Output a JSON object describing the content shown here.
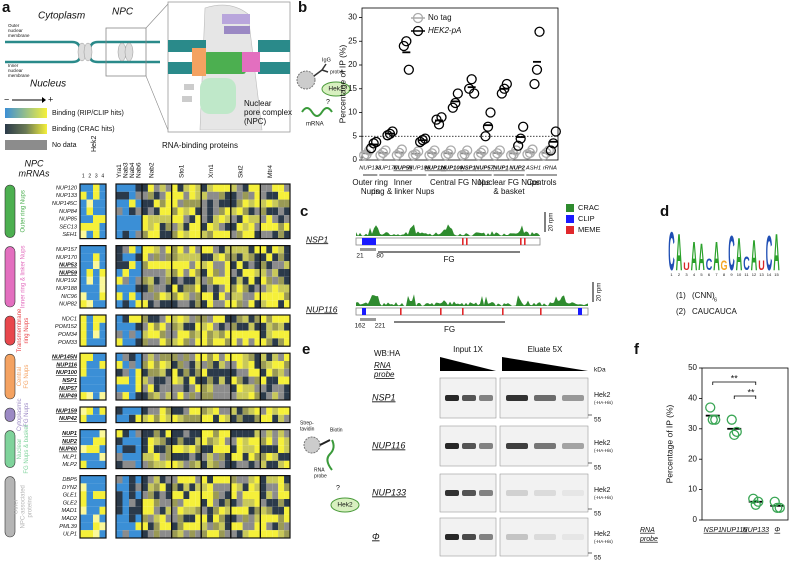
{
  "panel_labels": [
    "a",
    "b",
    "c",
    "d",
    "e",
    "f"
  ],
  "panel_a": {
    "cytoplasm": "Cytoplasm",
    "npc": "NPC",
    "nucleus": "Nucleus",
    "outer_membrane": [
      "Outer",
      "nuclear",
      "membrane"
    ],
    "inner_membrane": [
      "Inner",
      "nuclear",
      "membrane"
    ],
    "npc_label": [
      "Nuclear",
      "pore complex",
      "(NPC)"
    ],
    "legend": {
      "minus": "−",
      "plus": "+",
      "items": [
        "Binding (RIP/CLIP hits)",
        "Binding (CRAC hits)",
        "No data"
      ]
    },
    "heatmap": {
      "row_title": [
        "NPC",
        "mRNAs"
      ],
      "hek2": "Hek2",
      "replicates": [
        "1",
        "2",
        "3",
        "4"
      ],
      "rbp_title": "RNA-binding proteins",
      "proteins": [
        "Yra1",
        "Nab3",
        "Nab4",
        "Nab6",
        "Nab2",
        "Sto1",
        "Xrn1",
        "Ski2",
        "Mtr4"
      ],
      "groups": [
        {
          "label": [
            "Outer ring Nups"
          ],
          "color": "#4caf50",
          "genes": [
            "NUP120",
            "NUP133",
            "NUP145C",
            "NUP84",
            "NUP85",
            "SEC13",
            "SEH1"
          ]
        },
        {
          "label": [
            "Inner ring & linker Nups"
          ],
          "color": "#e36fbf",
          "genes": [
            "NUP157",
            "NUP170",
            {
              "name": "NUP53",
              "bold": true
            },
            {
              "name": "NUP59",
              "bold": true
            },
            "NUP192",
            "NUP188",
            "NIC96",
            "NUP82"
          ]
        },
        {
          "label": [
            "Transmembrane",
            "ring Nups"
          ],
          "color": "#e8474c",
          "genes": [
            "NDC1",
            "POM152",
            "POM34",
            "POM33"
          ]
        },
        {
          "label": [
            "Central",
            "FG Nups"
          ],
          "color": "#f4a261",
          "genes": [
            {
              "name": "NUP145N",
              "bold": true
            },
            {
              "name": "NUP116",
              "bold": true
            },
            {
              "name": "NUP100",
              "bold": true
            },
            {
              "name": "NSP1",
              "bold": true
            },
            {
              "name": "NUP57",
              "bold": true
            },
            {
              "name": "NUP49",
              "bold": true
            }
          ]
        },
        {
          "label": [
            "Cytoplasmic",
            "FG Nups"
          ],
          "color": "#9b89c4",
          "genes": [
            {
              "name": "NUP159",
              "bold": true
            },
            {
              "name": "NUP42",
              "bold": true
            }
          ]
        },
        {
          "label": [
            "Nuclear",
            "FG Nups & basket"
          ],
          "color": "#7fd39b",
          "genes": [
            {
              "name": "NUP1",
              "bold": true
            },
            {
              "name": "NUP2",
              "bold": true
            },
            {
              "name": "NUP60",
              "bold": true
            },
            "MLP1",
            "MLP2"
          ]
        },
        {
          "label": [
            "Other",
            "NPC-associated",
            "proteins"
          ],
          "color": "#b5b5b5",
          "genes": [
            "DBP5",
            "DYN2",
            "GLE1",
            "GLE2",
            "MAD1",
            "MAD2",
            "PML39",
            "ULP1"
          ]
        }
      ]
    }
  },
  "panel_b_icon": {
    "igg": "IgG",
    "prota": "prot-A",
    "hek2": "Hek2",
    "question": "?",
    "mrna": "mRNA"
  },
  "panel_c": {
    "tracks": [
      {
        "gene": "NSP1",
        "start": 21,
        "end": 80,
        "domain": "FG",
        "scale": "20 rpm"
      },
      {
        "gene": "NUP116",
        "start": 162,
        "end": 221,
        "domain": "FG",
        "scale": "20 rpm"
      }
    ],
    "legend": [
      {
        "name": "CRAC",
        "color": "#2e8b2e"
      },
      {
        "name": "CLIP",
        "color": "#1a1aff"
      },
      {
        "name": "MEME",
        "color": "#e0282c"
      }
    ]
  },
  "panel_d": {
    "logo": [
      "C",
      "A",
      "U",
      "A",
      "A",
      "C",
      "A",
      "G",
      "C",
      "A",
      "C",
      "A",
      "U",
      "C",
      "A"
    ],
    "positions": [
      1,
      2,
      3,
      4,
      5,
      6,
      7,
      8,
      9,
      10,
      11,
      12,
      13,
      14,
      15
    ],
    "motifs": [
      {
        "index": "(1)",
        "text": "(CNN)",
        "subscript": "6"
      },
      {
        "index": "(2)",
        "text": "CAUCAUCA"
      }
    ]
  },
  "panel_e": {
    "wb": "WB:HA",
    "rna_probe": [
      "RNA",
      "probe"
    ],
    "input": "Input 1X",
    "eluate": "Eluate 5X",
    "kda": "kDa",
    "rows": [
      {
        "probe": "NSP1",
        "protein": "Hek2",
        "tag": "(-HA-His)",
        "marker": 55
      },
      {
        "probe": "NUP116",
        "protein": "Hek2",
        "tag": "(-HA-His)",
        "marker": 55
      },
      {
        "probe": "NUP133",
        "protein": "Hek2",
        "tag": "(-HA-His)",
        "marker": 55
      },
      {
        "probe": "Φ",
        "protein": "Hek2",
        "tag": "(-HA-His)",
        "marker": 55
      }
    ],
    "icon": {
      "streptavidin": [
        "Strep-",
        "tavidin"
      ],
      "biotin": "Biotin",
      "probe": [
        "RNA",
        "probe"
      ],
      "question": "?",
      "hek2": "Hek2"
    }
  },
  "chart_data": [
    {
      "type": "scatter",
      "y_label": "Percentage of IP (%)",
      "categories": [
        "NUP133",
        "NUP170",
        "NUP59",
        "NUP188",
        "NUP116",
        "NUP100",
        "NSP1",
        "NUP57",
        "NUP1",
        "NUP2",
        "ASH1",
        "rRNA"
      ],
      "bold_categories": [
        false,
        false,
        true,
        false,
        true,
        true,
        true,
        true,
        true,
        true,
        false,
        false
      ],
      "groups": [
        {
          "label": [
            "Outer ring",
            "Nups"
          ],
          "first": 0,
          "last": 0
        },
        {
          "label": [
            "Inner",
            "ring & linker Nups"
          ],
          "first": 1,
          "last": 3
        },
        {
          "label": [
            "Central FG Nups"
          ],
          "first": 4,
          "last": 7
        },
        {
          "label": [
            "Nuclear FG Nups",
            "& basket"
          ],
          "first": 8,
          "last": 9
        },
        {
          "label": [
            "Controls"
          ],
          "first": 10,
          "last": 11
        }
      ],
      "series": [
        {
          "name": "No tag",
          "color": "#aaaaaa",
          "values": [
            [
              1,
              1.2,
              2
            ],
            [
              1,
              1.5,
              2
            ],
            [
              1,
              1.5,
              2.2
            ],
            [
              1,
              1.2,
              1.8
            ],
            [
              1,
              1.4,
              2
            ],
            [
              1,
              1.3,
              2
            ],
            [
              1,
              1.2,
              2
            ],
            [
              1,
              1.5,
              2
            ],
            [
              1,
              1.4,
              2
            ],
            [
              1,
              1.2,
              2
            ],
            [
              1.2,
              1.5,
              2.2
            ],
            [
              1,
              1.5,
              2
            ]
          ]
        },
        {
          "name": "HEK2-pA",
          "color": "#000000",
          "values": [
            [
              2.5,
              3.5,
              3.8
            ],
            [
              5.2,
              5.5,
              6
            ],
            [
              24,
              25,
              19
            ],
            [
              3.8,
              4.2,
              4.5
            ],
            [
              8.5,
              7.5,
              9
            ],
            [
              11,
              12,
              14
            ],
            [
              15,
              17,
              14
            ],
            [
              5,
              7,
              10
            ],
            [
              14,
              15,
              16
            ],
            [
              3,
              4.5,
              7
            ],
            [
              16,
              19,
              27
            ],
            [
              2,
              3.5,
              6
            ]
          ]
        }
      ],
      "threshold": 5,
      "ylim": [
        0,
        32
      ],
      "yticks": [
        0,
        5,
        10,
        15,
        20,
        25,
        30
      ]
    },
    {
      "type": "scatter",
      "y_label": "Percentage of IP (%)",
      "x_label": [
        "RNA",
        "probe"
      ],
      "categories": [
        "NSP1",
        "NUP116",
        "NUP133",
        "Φ"
      ],
      "series": [
        {
          "color": "#3aa655",
          "values": [
            [
              37,
              33,
              33
            ],
            [
              33,
              28,
              29
            ],
            [
              7,
              5,
              6
            ],
            [
              6,
              4,
              4
            ]
          ]
        }
      ],
      "significance": [
        {
          "first": 0,
          "last": 2,
          "label": "**"
        },
        {
          "first": 1,
          "last": 2,
          "label": "**"
        }
      ],
      "ylim": [
        0,
        50
      ],
      "yticks": [
        0,
        10,
        20,
        30,
        40,
        50
      ]
    }
  ]
}
